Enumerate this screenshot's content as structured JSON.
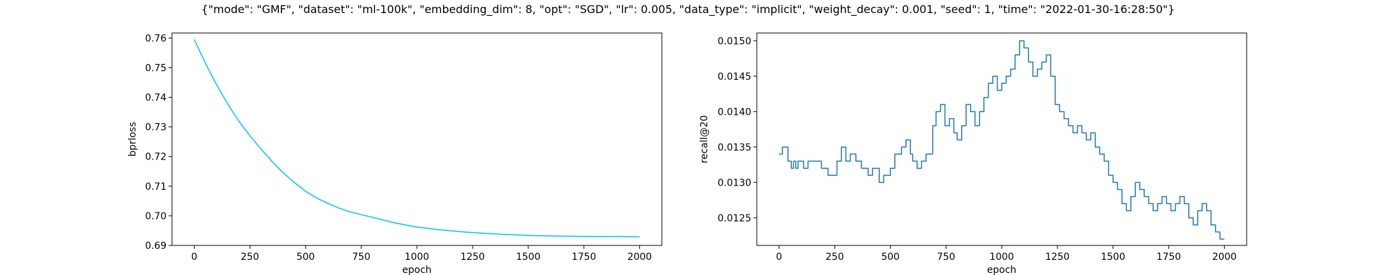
{
  "figure": {
    "title": "{\"mode\": \"GMF\", \"dataset\": \"ml-100k\", \"embedding_dim\": 8, \"opt\": \"SGD\", \"lr\": 0.005, \"data_type\": \"implicit\", \"weight_decay\": 0.001, \"seed\": 1, \"time\": \"2022-01-30-16:28:50\"}"
  },
  "chart_data": [
    {
      "type": "line",
      "title": "",
      "xlabel": "epoch",
      "ylabel": "bprloss",
      "xlim": [
        -100,
        2100
      ],
      "ylim": [
        0.69,
        0.7617
      ],
      "xticks": [
        0,
        250,
        500,
        750,
        1000,
        1250,
        1500,
        1750,
        2000
      ],
      "xtick_labels": [
        "0",
        "250",
        "500",
        "750",
        "1000",
        "1250",
        "1500",
        "1750",
        "2000"
      ],
      "yticks": [
        0.69,
        0.7,
        0.71,
        0.72,
        0.73,
        0.74,
        0.75,
        0.76
      ],
      "ytick_labels": [
        "0.69",
        "0.70",
        "0.71",
        "0.72",
        "0.73",
        "0.74",
        "0.75",
        "0.76"
      ],
      "grid": false,
      "series": [
        {
          "color": "#00bfff",
          "x": [
            0,
            25,
            50,
            75,
            100,
            125,
            150,
            175,
            200,
            250,
            300,
            350,
            400,
            450,
            500,
            550,
            600,
            650,
            700,
            800,
            900,
            1000,
            1100,
            1200,
            1300,
            1400,
            1500,
            1600,
            1700,
            1800,
            1900,
            2000
          ],
          "y": [
            0.7595,
            0.7555,
            0.7515,
            0.7478,
            0.7443,
            0.741,
            0.7378,
            0.7348,
            0.732,
            0.727,
            0.7225,
            0.7183,
            0.7145,
            0.7112,
            0.7083,
            0.706,
            0.7042,
            0.7026,
            0.7013,
            0.6995,
            0.6976,
            0.6962,
            0.6953,
            0.6946,
            0.6941,
            0.6937,
            0.6934,
            0.6932,
            0.6931,
            0.693,
            0.693,
            0.6929
          ]
        }
      ]
    },
    {
      "type": "line",
      "title": "",
      "xlabel": "epoch",
      "ylabel": "recall@20",
      "xlim": [
        -100,
        2100
      ],
      "ylim": [
        0.01211,
        0.01511
      ],
      "xticks": [
        0,
        250,
        500,
        750,
        1000,
        1250,
        1500,
        1750,
        2000
      ],
      "xtick_labels": [
        "0",
        "250",
        "500",
        "750",
        "1000",
        "1250",
        "1500",
        "1750",
        "2000"
      ],
      "yticks": [
        0.0125,
        0.013,
        0.0135,
        0.014,
        0.0145,
        0.015
      ],
      "ytick_labels": [
        "0.0125",
        "0.0130",
        "0.0135",
        "0.0140",
        "0.0145",
        "0.0150"
      ],
      "grid": false,
      "series": [
        {
          "color": "#1f77b4",
          "x": [
            0,
            15,
            40,
            55,
            65,
            75,
            85,
            95,
            110,
            130,
            160,
            190,
            220,
            260,
            280,
            300,
            320,
            345,
            370,
            400,
            420,
            450,
            470,
            500,
            520,
            550,
            570,
            590,
            600,
            620,
            640,
            660,
            690,
            705,
            725,
            745,
            765,
            785,
            800,
            820,
            840,
            860,
            880,
            900,
            920,
            940,
            960,
            980,
            1000,
            1020,
            1040,
            1060,
            1080,
            1100,
            1120,
            1140,
            1160,
            1180,
            1200,
            1220,
            1240,
            1260,
            1280,
            1300,
            1320,
            1340,
            1360,
            1380,
            1400,
            1420,
            1440,
            1460,
            1480,
            1500,
            1520,
            1540,
            1560,
            1580,
            1600,
            1620,
            1640,
            1660,
            1680,
            1700,
            1720,
            1740,
            1760,
            1780,
            1800,
            1820,
            1840,
            1860,
            1880,
            1900,
            1920,
            1940,
            1960,
            1980,
            2000
          ],
          "y": [
            0.0134,
            0.0135,
            0.0133,
            0.0132,
            0.0133,
            0.0132,
            0.0133,
            0.0133,
            0.0132,
            0.0133,
            0.0133,
            0.0132,
            0.0131,
            0.0133,
            0.0135,
            0.0133,
            0.0134,
            0.0133,
            0.0132,
            0.0131,
            0.0132,
            0.013,
            0.0131,
            0.0132,
            0.0134,
            0.0135,
            0.0136,
            0.0134,
            0.0133,
            0.0132,
            0.0133,
            0.0134,
            0.0138,
            0.014,
            0.0141,
            0.0138,
            0.0139,
            0.0137,
            0.0136,
            0.0138,
            0.0141,
            0.014,
            0.0138,
            0.014,
            0.0142,
            0.0144,
            0.0145,
            0.0143,
            0.0144,
            0.0145,
            0.0146,
            0.0148,
            0.015,
            0.0149,
            0.0147,
            0.0145,
            0.0146,
            0.0147,
            0.0148,
            0.0145,
            0.0141,
            0.014,
            0.0139,
            0.0138,
            0.0137,
            0.0138,
            0.0137,
            0.0136,
            0.0137,
            0.0135,
            0.0134,
            0.0133,
            0.0131,
            0.013,
            0.0129,
            0.0127,
            0.0126,
            0.0128,
            0.013,
            0.0129,
            0.0128,
            0.0127,
            0.0126,
            0.0127,
            0.0128,
            0.0127,
            0.0126,
            0.0127,
            0.0128,
            0.0127,
            0.0125,
            0.0124,
            0.0126,
            0.0127,
            0.0126,
            0.0124,
            0.0123,
            0.0122,
            0.0122
          ]
        }
      ]
    }
  ]
}
